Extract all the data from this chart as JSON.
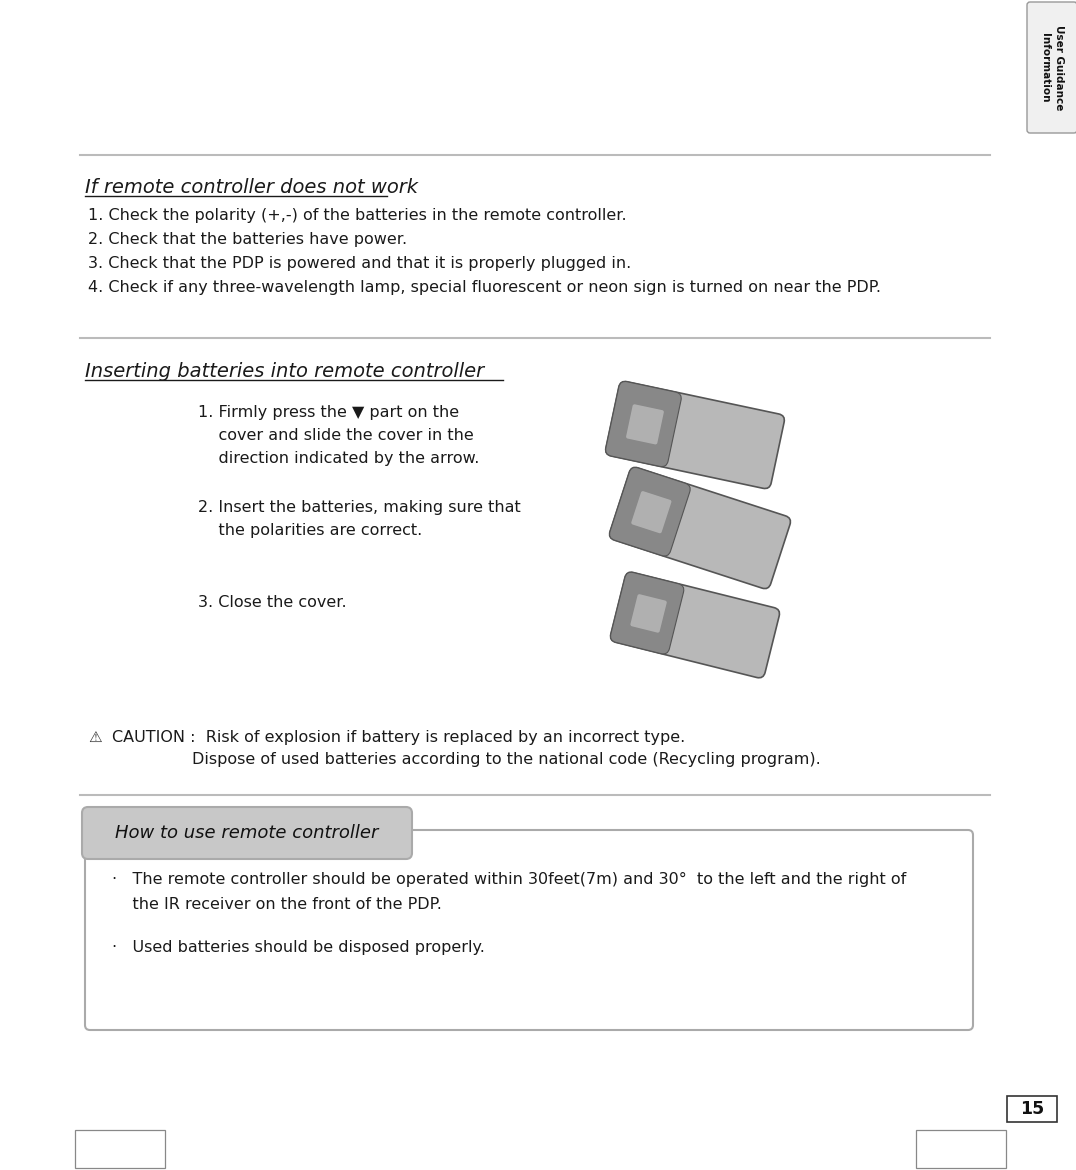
{
  "bg_color": "#ffffff",
  "tab_text": "User Guidance\nInformation",
  "tab_border": "#999999",
  "section1_title": "If remote controller does not work",
  "section1_items": [
    "1. Check the polarity (+,-) of the batteries in the remote controller.",
    "2. Check that the batteries have power.",
    "3. Check that the PDP is powered and that it is properly plugged in.",
    "4. Check if any three-wavelength lamp, special fluorescent or neon sign is turned on near the PDP."
  ],
  "section2_title": "Inserting batteries into remote controller",
  "step1": "1. Firmly press the ▼ part on the\n    cover and slide the cover in the\n    direction indicated by the arrow.",
  "step2": "2. Insert the batteries, making sure that\n    the polarities are correct.",
  "step3": "3. Close the cover.",
  "caution1": "CAUTION :  Risk of explosion if battery is replaced by an incorrect type.",
  "caution2": "Dispose of used batteries according to the national code (Recycling program).",
  "howto_title": "How to use remote controller",
  "bullet1_line1": "·   The remote controller should be operated within 30feet(7m) and 30°  to the left and the right of",
  "bullet1_line2": "    the IR receiver on the front of the PDP.",
  "bullet2": "·   Used batteries should be disposed properly.",
  "page_num": "15",
  "line_color": "#bbbbbb",
  "text_color": "#1a1a1a"
}
